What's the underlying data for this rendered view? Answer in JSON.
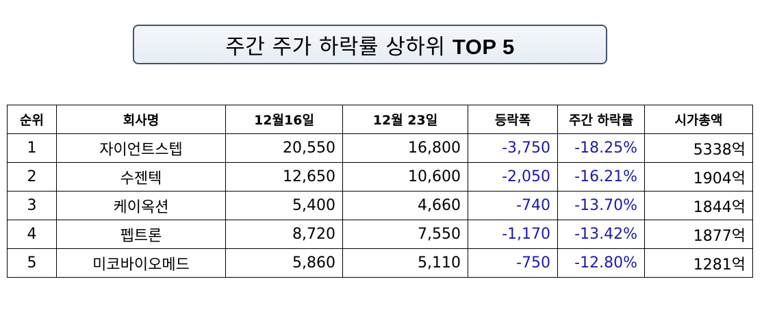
{
  "title": {
    "prefix": "주간 주가 하락률 상하위 ",
    "emphasis": "TOP 5"
  },
  "table": {
    "columns": [
      "순위",
      "회사명",
      "12월16일",
      "12월 23일",
      "등락폭",
      "주간 하락률",
      "시가총액"
    ],
    "rows": [
      {
        "rank": "1",
        "company": "자이언트스텝",
        "dec16": "20,550",
        "dec23": "16,800",
        "change": "-3,750",
        "rate": "-18.25%",
        "market_cap": "5338억"
      },
      {
        "rank": "2",
        "company": "수젠텍",
        "dec16": "12,650",
        "dec23": "10,600",
        "change": "-2,050",
        "rate": "-16.21%",
        "market_cap": "1904억"
      },
      {
        "rank": "3",
        "company": "케이옥션",
        "dec16": "5,400",
        "dec23": "4,660",
        "change": "-740",
        "rate": "-13.70%",
        "market_cap": "1844억"
      },
      {
        "rank": "4",
        "company": "펩트론",
        "dec16": "8,720",
        "dec23": "7,550",
        "change": "-1,170",
        "rate": "-13.42%",
        "market_cap": "1877억"
      },
      {
        "rank": "5",
        "company": "미코바이오메드",
        "dec16": "5,860",
        "dec23": "5,110",
        "change": "-750",
        "rate": "-12.80%",
        "market_cap": "1281억"
      }
    ]
  },
  "colors": {
    "negative_value": "#1b1ba8",
    "title_border": "#3d5370"
  }
}
